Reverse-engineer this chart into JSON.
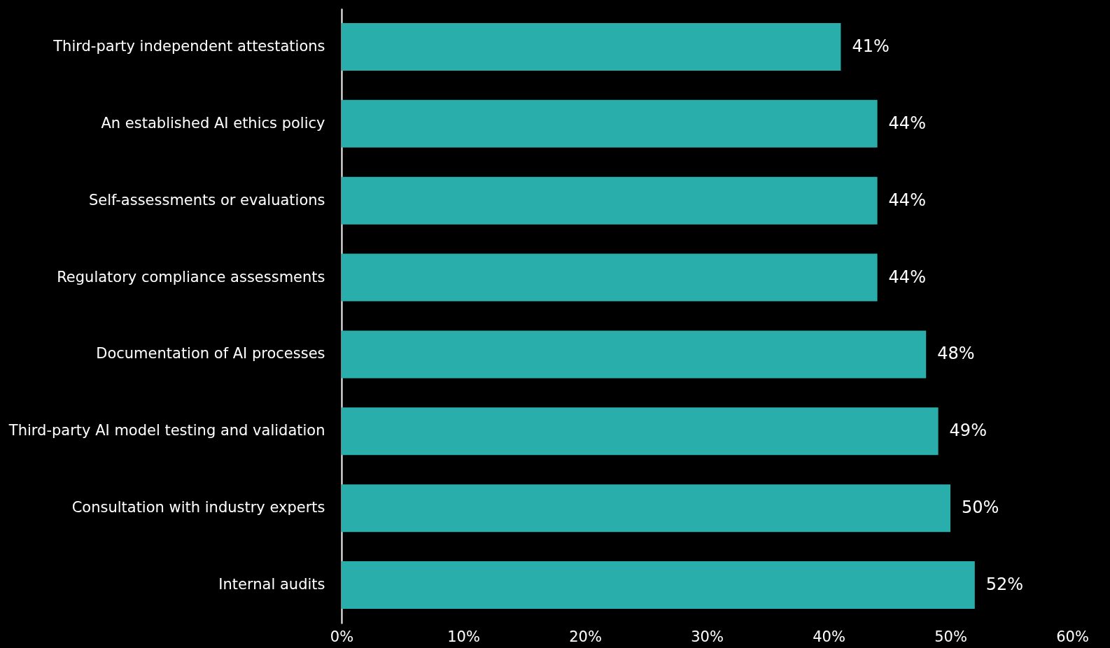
{
  "chart_data": {
    "type": "bar",
    "orientation": "horizontal",
    "categories": [
      "Third-party independent attestations",
      "An established AI ethics policy",
      "Self-assessments or evaluations",
      "Regulatory compliance assessments",
      "Documentation of AI processes",
      "Third-party AI model testing and validation",
      "Consultation with industry experts",
      "Internal audits"
    ],
    "values": [
      41,
      44,
      44,
      44,
      48,
      49,
      50,
      52
    ],
    "value_labels": [
      "41%",
      "44%",
      "44%",
      "44%",
      "48%",
      "49%",
      "50%",
      "52%"
    ],
    "color": "#2aaeac",
    "xlim": [
      0,
      60
    ],
    "xticks": [
      {
        "value": 0,
        "label": "0%"
      },
      {
        "value": 10,
        "label": "10%"
      },
      {
        "value": 20,
        "label": "20%"
      },
      {
        "value": 30,
        "label": "30%"
      },
      {
        "value": 40,
        "label": "40%"
      },
      {
        "value": 50,
        "label": "50%"
      },
      {
        "value": 60,
        "label": "60%"
      }
    ],
    "grid": false
  }
}
